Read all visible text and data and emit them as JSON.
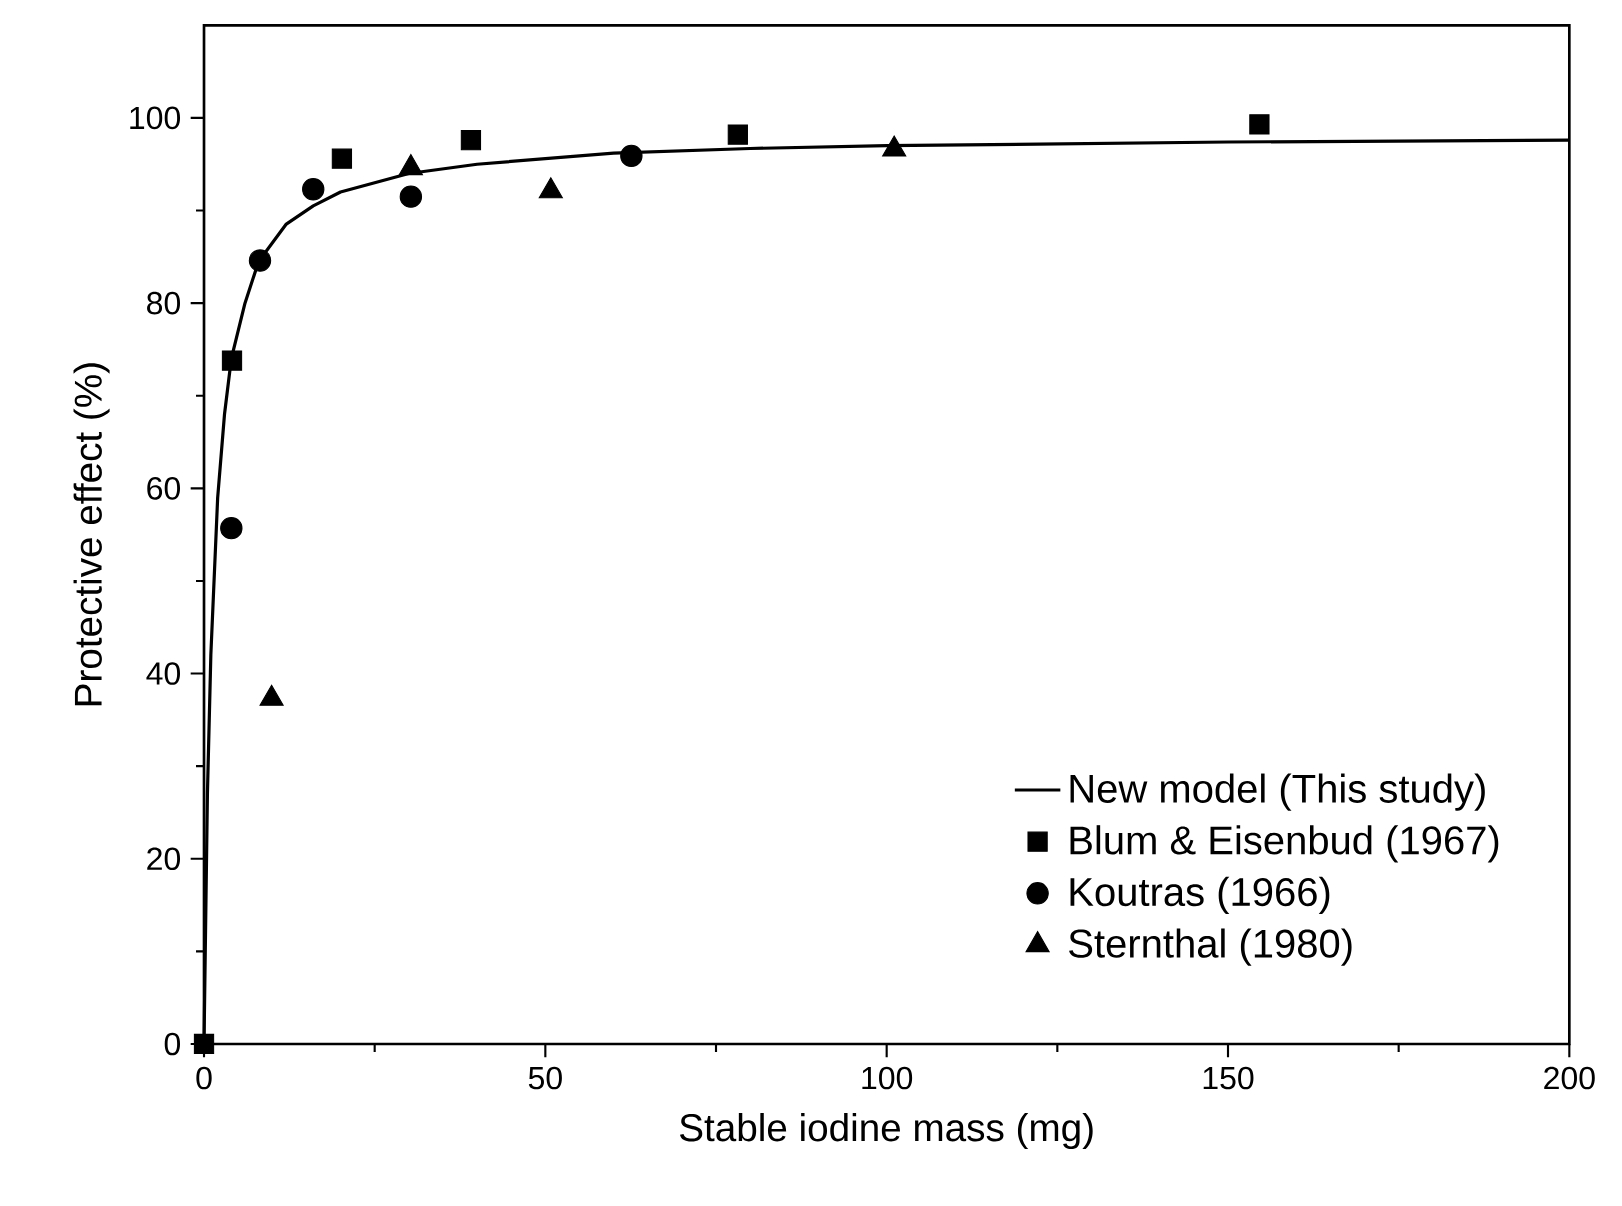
{
  "chart_data": {
    "type": "scatter",
    "xlabel": "Stable iodine mass (mg)",
    "ylabel": "Protective effect (%)",
    "xlim": [
      0,
      200
    ],
    "ylim": [
      0,
      110
    ],
    "xticks": [
      0,
      50,
      100,
      150,
      200
    ],
    "yticks": [
      0,
      20,
      40,
      60,
      80,
      100
    ],
    "legend": "bottom right",
    "grid": false,
    "series": [
      {
        "name": "New model (This study)",
        "type": "line",
        "color": "#000000",
        "marker": "none",
        "line_style": "solid",
        "x": [
          0,
          0.5,
          1,
          2,
          3,
          4,
          6,
          8,
          12,
          16,
          20,
          30,
          40,
          60,
          80,
          100,
          150,
          200
        ],
        "values": [
          0,
          27,
          42,
          59,
          68,
          74,
          80,
          84.5,
          88.5,
          90.5,
          92,
          94,
          95,
          96.2,
          96.7,
          97,
          97.4,
          97.6
        ]
      },
      {
        "name": "Blum & Eisenbud (1967)",
        "color": "#000000",
        "marker": "square",
        "x": [
          0,
          4.1,
          20.2,
          39.1,
          78.2,
          154.6
        ],
        "values": [
          0,
          73.8,
          95.6,
          97.6,
          98.2,
          99.3
        ]
      },
      {
        "name": "Koutras (1966)",
        "color": "#000000",
        "marker": "circle",
        "x": [
          4.0,
          8.2,
          16.0,
          30.3,
          62.6
        ],
        "values": [
          55.7,
          84.6,
          92.3,
          91.5,
          95.9
        ]
      },
      {
        "name": "Sternthal (1980)",
        "color": "#000000",
        "marker": "triangle",
        "x": [
          9.9,
          30.3,
          50.8,
          101.1
        ],
        "values": [
          37.3,
          94.6,
          92.1,
          96.6
        ]
      }
    ]
  }
}
